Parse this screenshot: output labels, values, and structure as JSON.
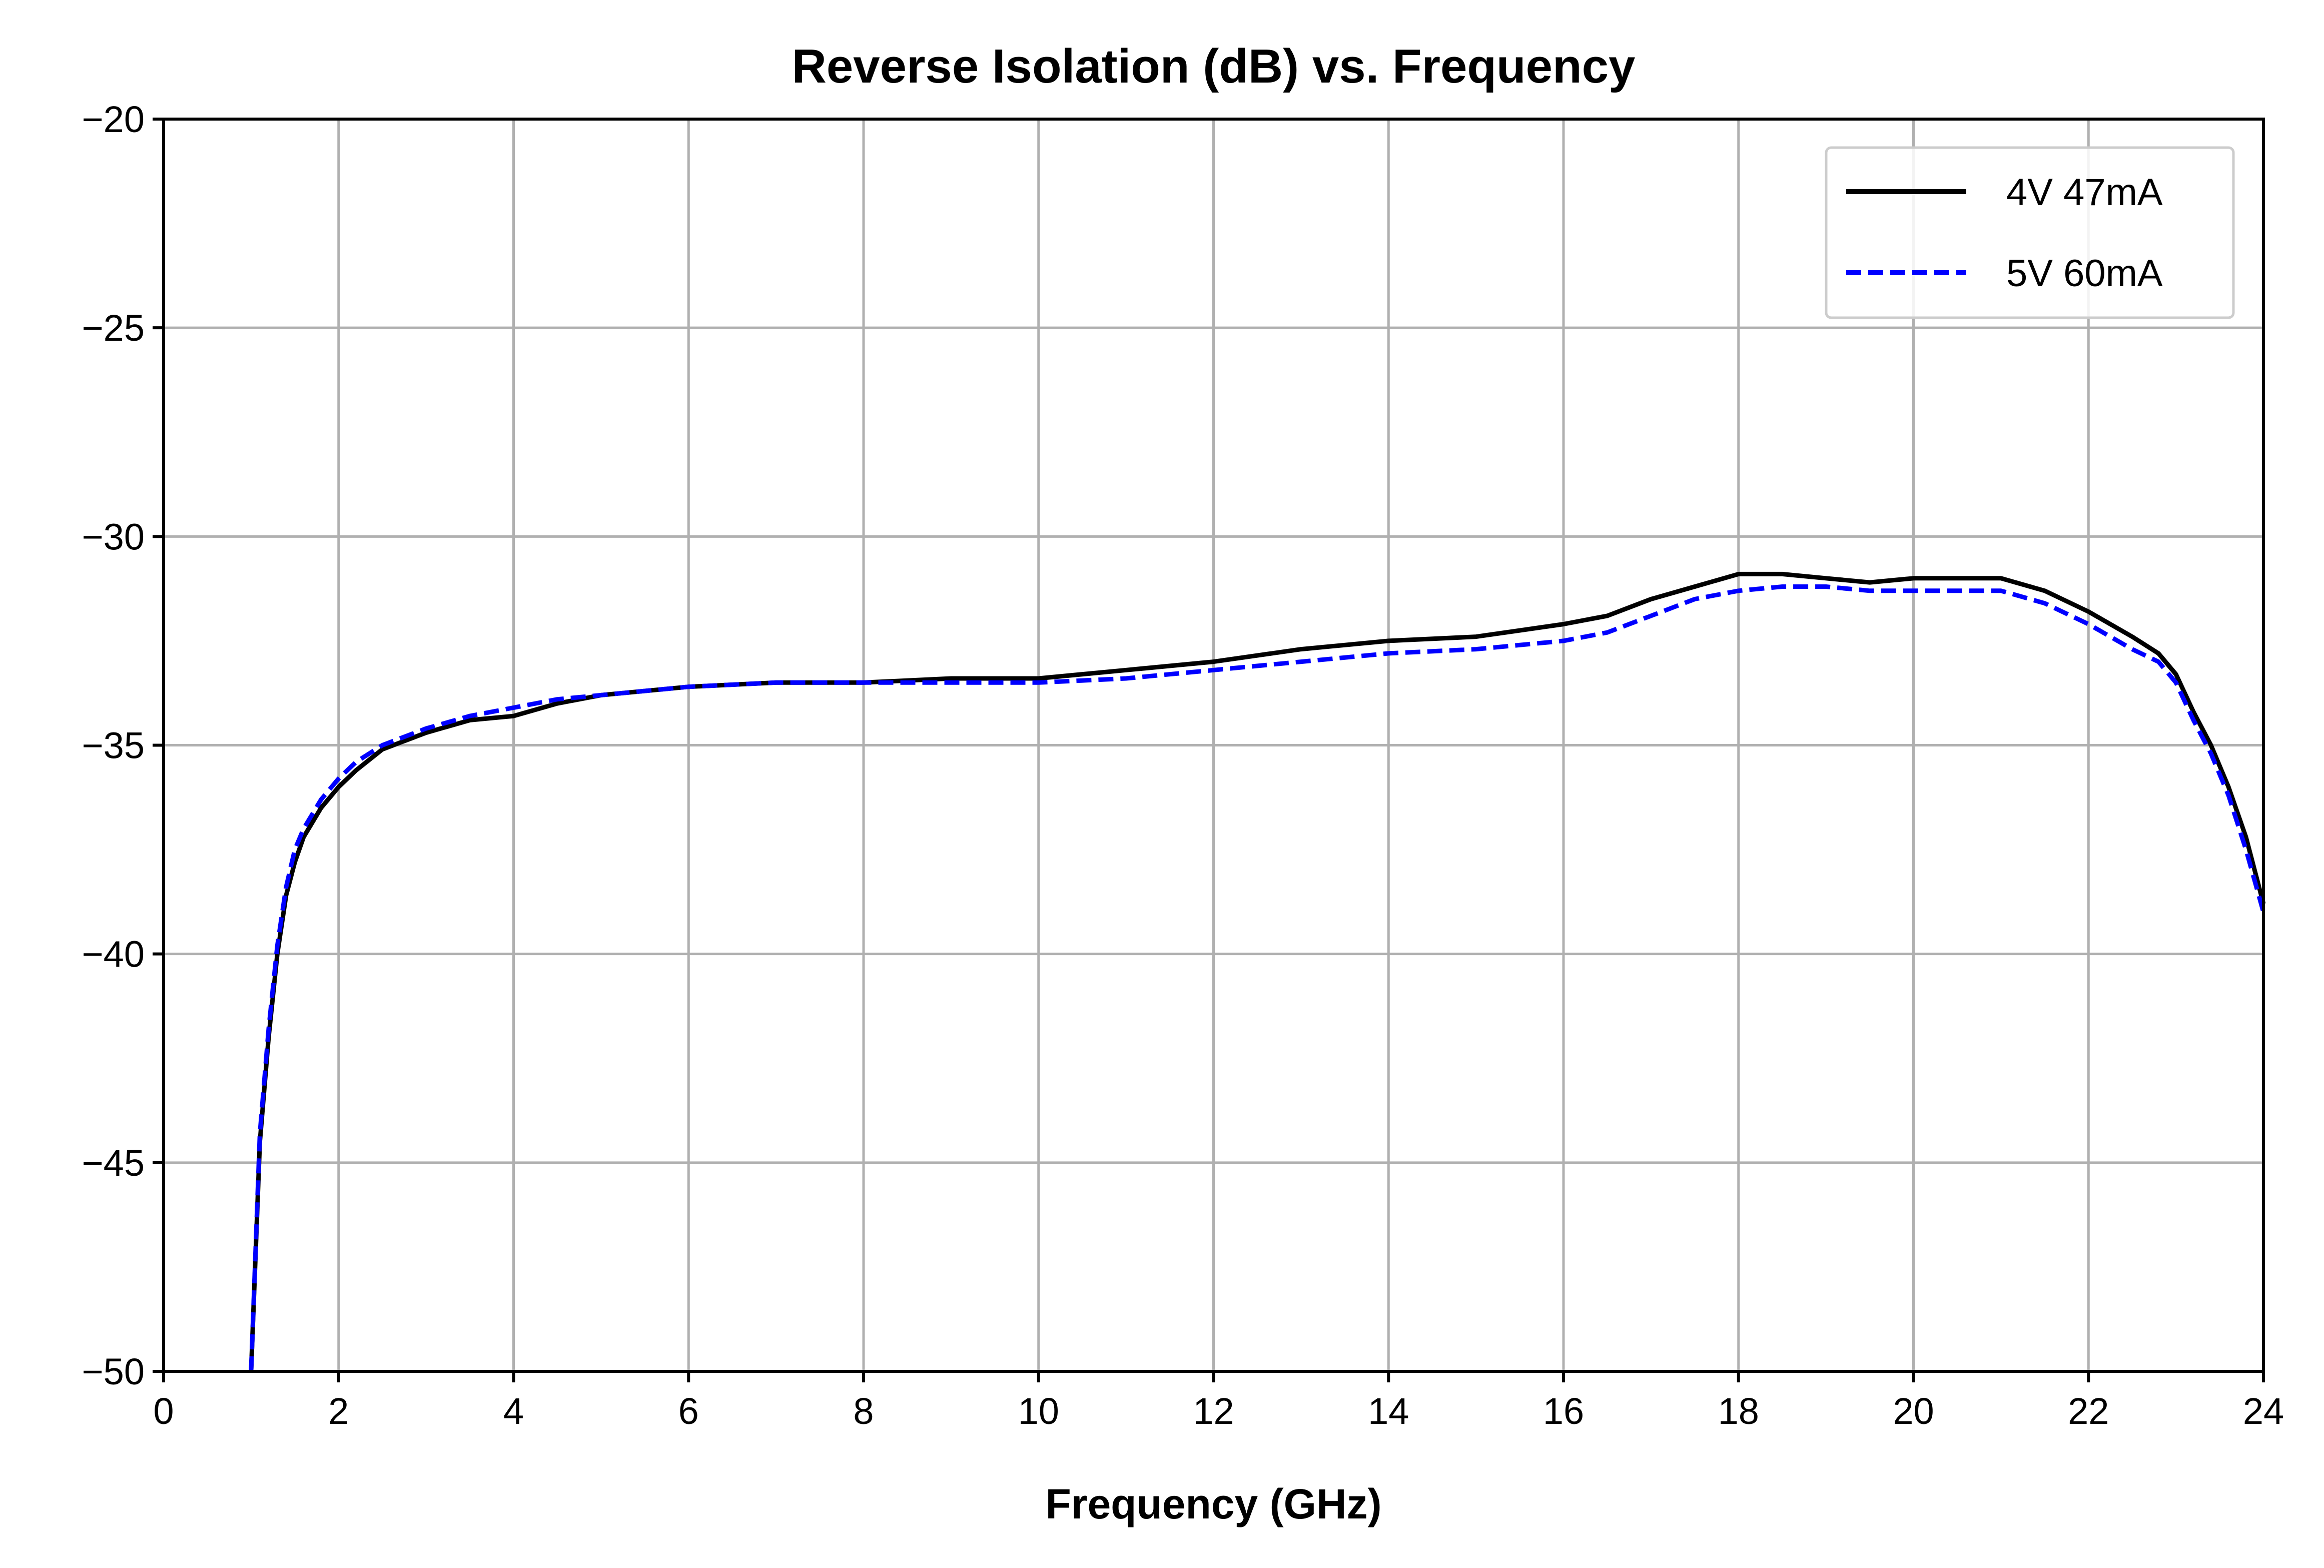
{
  "chart_data": {
    "type": "line",
    "title": "Reverse Isolation (dB) vs. Frequency",
    "xlabel": "Frequency (GHz)",
    "ylabel": "",
    "xlim": [
      0,
      24
    ],
    "ylim": [
      -50,
      -20
    ],
    "xticks": [
      0,
      2,
      4,
      6,
      8,
      10,
      12,
      14,
      16,
      18,
      20,
      22,
      24
    ],
    "yticks": [
      -50,
      -45,
      -40,
      -35,
      -30,
      -25,
      -20
    ],
    "ytick_labels": [
      "−50",
      "−45",
      "−40",
      "−35",
      "−30",
      "−25",
      "−20"
    ],
    "grid": true,
    "legend_position": "top-right",
    "series": [
      {
        "name": "4V 47mA",
        "color": "#000000",
        "style": "solid",
        "x": [
          1.0,
          1.1,
          1.2,
          1.3,
          1.4,
          1.5,
          1.6,
          1.8,
          2.0,
          2.2,
          2.5,
          3.0,
          3.5,
          4.0,
          4.5,
          5.0,
          6.0,
          7.0,
          8.0,
          9.0,
          10.0,
          11.0,
          12.0,
          13.0,
          14.0,
          15.0,
          16.0,
          16.5,
          17.0,
          17.5,
          18.0,
          18.5,
          19.0,
          19.5,
          20.0,
          20.5,
          21.0,
          21.5,
          22.0,
          22.5,
          22.8,
          23.0,
          23.2,
          23.4,
          23.6,
          23.8,
          24.0
        ],
        "y": [
          -50.0,
          -44.5,
          -42.0,
          -40.0,
          -38.6,
          -37.8,
          -37.2,
          -36.5,
          -36.0,
          -35.6,
          -35.1,
          -34.7,
          -34.4,
          -34.3,
          -34.0,
          -33.8,
          -33.6,
          -33.5,
          -33.5,
          -33.4,
          -33.4,
          -33.2,
          -33.0,
          -32.7,
          -32.5,
          -32.4,
          -32.1,
          -31.9,
          -31.5,
          -31.2,
          -30.9,
          -30.9,
          -31.0,
          -31.1,
          -31.0,
          -31.0,
          -31.0,
          -31.3,
          -31.8,
          -32.4,
          -32.8,
          -33.3,
          -34.2,
          -35.0,
          -36.0,
          -37.2,
          -38.8
        ]
      },
      {
        "name": "5V 60mA",
        "color": "#0000ff",
        "style": "dashed",
        "x": [
          1.0,
          1.1,
          1.2,
          1.3,
          1.4,
          1.5,
          1.6,
          1.8,
          2.0,
          2.2,
          2.5,
          3.0,
          3.5,
          4.0,
          4.5,
          5.0,
          6.0,
          7.0,
          8.0,
          9.0,
          10.0,
          11.0,
          12.0,
          13.0,
          14.0,
          15.0,
          16.0,
          16.5,
          17.0,
          17.5,
          18.0,
          18.5,
          19.0,
          19.5,
          20.0,
          20.5,
          21.0,
          21.5,
          22.0,
          22.5,
          22.8,
          23.0,
          23.2,
          23.4,
          23.6,
          23.8,
          24.0
        ],
        "y": [
          -50.0,
          -44.3,
          -41.8,
          -39.8,
          -38.4,
          -37.5,
          -37.0,
          -36.3,
          -35.8,
          -35.4,
          -35.0,
          -34.6,
          -34.3,
          -34.1,
          -33.9,
          -33.8,
          -33.6,
          -33.5,
          -33.5,
          -33.5,
          -33.5,
          -33.4,
          -33.2,
          -33.0,
          -32.8,
          -32.7,
          -32.5,
          -32.3,
          -31.9,
          -31.5,
          -31.3,
          -31.2,
          -31.2,
          -31.3,
          -31.3,
          -31.3,
          -31.3,
          -31.6,
          -32.1,
          -32.7,
          -33.0,
          -33.5,
          -34.4,
          -35.2,
          -36.2,
          -37.5,
          -39.0
        ]
      }
    ]
  }
}
